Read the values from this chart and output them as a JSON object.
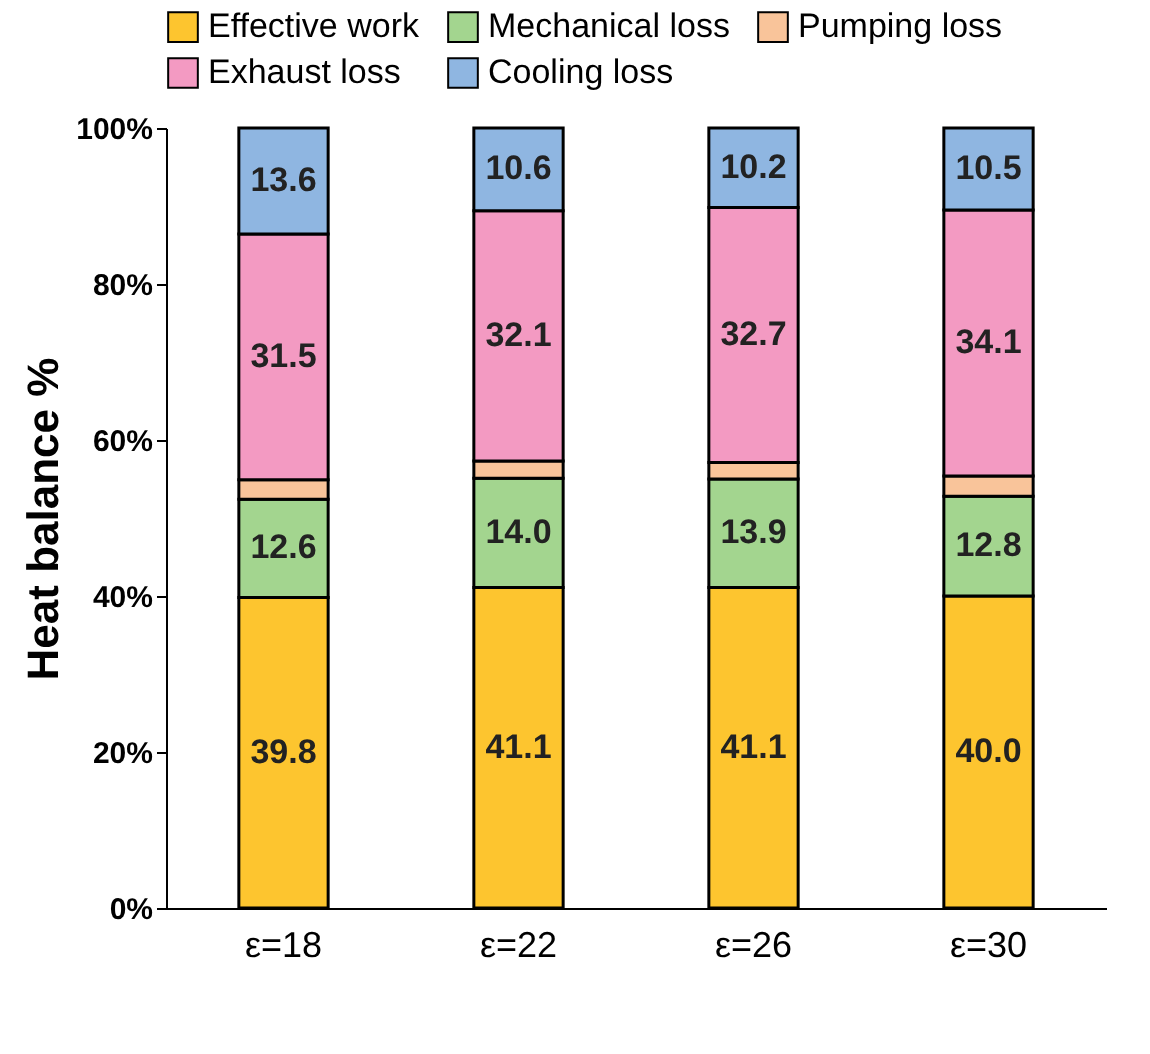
{
  "chart_data": {
    "type": "bar",
    "stacked": true,
    "ylabel": "Heat balance %",
    "categories": [
      "ε=18",
      "ε=22",
      "ε=26",
      "ε=30"
    ],
    "series": [
      {
        "name": "Effective work",
        "color": "#fdc52f",
        "values": [
          39.8,
          41.1,
          41.1,
          40.0
        ],
        "value_labels": [
          "39.8",
          "41.1",
          "41.1",
          "40.0"
        ]
      },
      {
        "name": "Mechanical loss",
        "color": "#a3d58f",
        "values": [
          12.6,
          14.0,
          13.9,
          12.8
        ],
        "value_labels": [
          "12.6",
          "14.0",
          "13.9",
          "12.8"
        ]
      },
      {
        "name": "Pumping loss",
        "color": "#f9c49a",
        "values": [
          2.5,
          2.2,
          2.1,
          2.6
        ],
        "value_labels": [
          null,
          null,
          null,
          null
        ]
      },
      {
        "name": "Exhaust loss",
        "color": "#f39ac2",
        "values": [
          31.5,
          32.1,
          32.7,
          34.1
        ],
        "value_labels": [
          "31.5",
          "32.1",
          "32.7",
          "34.1"
        ]
      },
      {
        "name": "Cooling loss",
        "color": "#8fb6e1",
        "values": [
          13.6,
          10.6,
          10.2,
          10.5
        ],
        "value_labels": [
          "13.6",
          "10.6",
          "10.2",
          "10.5"
        ]
      }
    ],
    "ylim": [
      0,
      100
    ],
    "yticks": [
      {
        "value": 0,
        "label": "0%"
      },
      {
        "value": 20,
        "label": "20%"
      },
      {
        "value": 40,
        "label": "40%"
      },
      {
        "value": 60,
        "label": "60%"
      },
      {
        "value": 80,
        "label": "80%"
      },
      {
        "value": 100,
        "label": "100%"
      }
    ],
    "grid": false,
    "legend": "top"
  }
}
